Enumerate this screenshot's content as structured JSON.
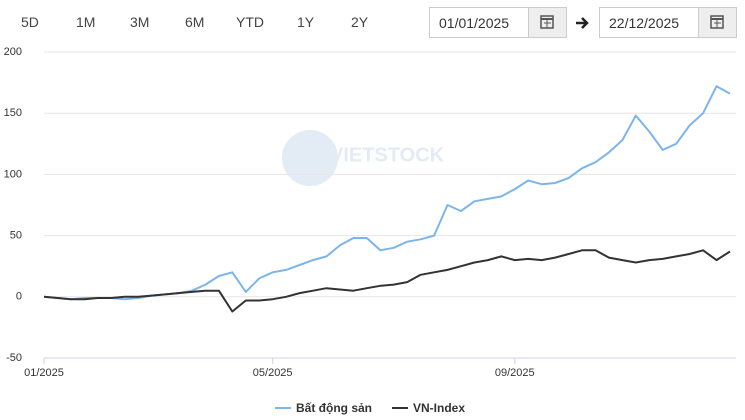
{
  "controls": {
    "ranges": [
      "5D",
      "1M",
      "3M",
      "6M",
      "YTD",
      "1Y",
      "2Y"
    ],
    "start_date": "01/01/2025",
    "end_date": "22/12/2025"
  },
  "chart_data": {
    "type": "line",
    "watermark": "VIETSTOCK",
    "categories": [
      "01/2025",
      null,
      null,
      null,
      null,
      null,
      null,
      null,
      null,
      null,
      null,
      null,
      null,
      null,
      null,
      null,
      null,
      "05/2025",
      null,
      null,
      null,
      null,
      null,
      null,
      null,
      null,
      null,
      null,
      null,
      null,
      null,
      null,
      null,
      null,
      null,
      "09/2025",
      null,
      null,
      null,
      null,
      null,
      null,
      null,
      null,
      null,
      null,
      null,
      null,
      null,
      null,
      null,
      null
    ],
    "series": [
      {
        "name": "Bất động sản",
        "color": "#7cb5ec",
        "values": [
          0,
          -1,
          -2,
          -1,
          -1,
          -1,
          -2,
          -1,
          1,
          2,
          3,
          5,
          10,
          17,
          20,
          4,
          15,
          20,
          22,
          26,
          30,
          33,
          42,
          48,
          48,
          38,
          40,
          45,
          47,
          50,
          75,
          70,
          78,
          80,
          82,
          88,
          95,
          92,
          93,
          97,
          105,
          110,
          118,
          128,
          148,
          135,
          120,
          125,
          140,
          150,
          172,
          166
        ]
      },
      {
        "name": "VN-Index",
        "color": "#333333",
        "values": [
          0,
          -1,
          -2,
          -2,
          -1,
          -1,
          0,
          0,
          1,
          2,
          3,
          4,
          5,
          5,
          -12,
          -3,
          -3,
          -2,
          0,
          3,
          5,
          7,
          6,
          5,
          7,
          9,
          10,
          12,
          18,
          20,
          22,
          25,
          28,
          30,
          33,
          30,
          31,
          30,
          32,
          35,
          38,
          38,
          32,
          30,
          28,
          30,
          31,
          33,
          35,
          38,
          30,
          37
        ]
      }
    ],
    "ylim": [
      -50,
      200
    ],
    "yticks": [
      -50,
      0,
      50,
      100,
      150,
      200
    ],
    "grid": true
  }
}
